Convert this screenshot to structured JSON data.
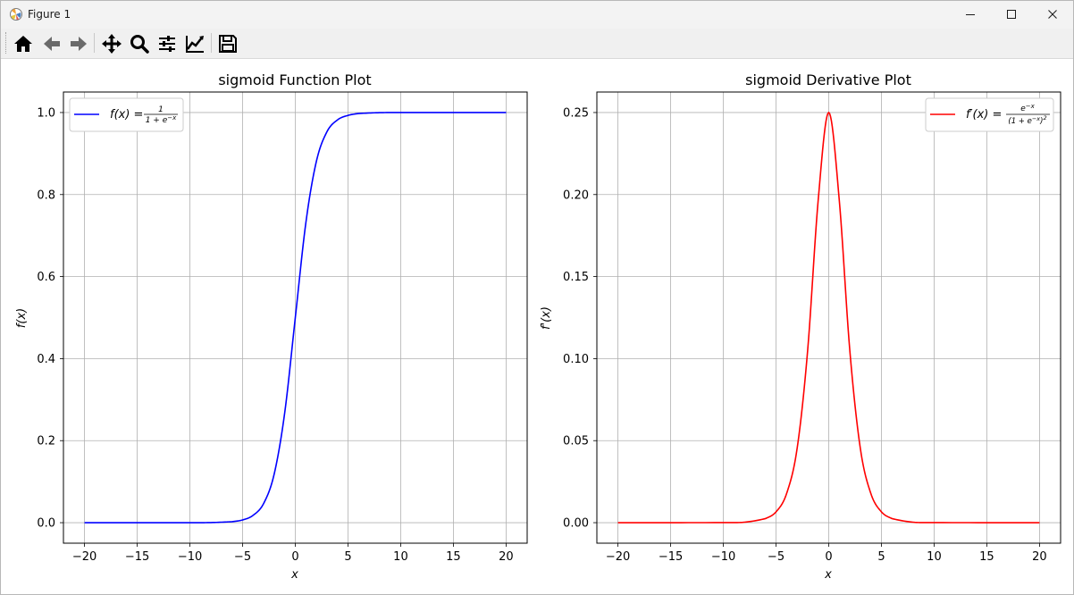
{
  "window": {
    "title": "Figure 1",
    "controls": [
      "minimize",
      "maximize",
      "close"
    ]
  },
  "toolbar": {
    "buttons": [
      {
        "name": "home",
        "icon": "home-icon"
      },
      {
        "name": "back",
        "icon": "arrow-left-icon"
      },
      {
        "name": "forward",
        "icon": "arrow-right-icon"
      },
      {
        "name": "pan",
        "icon": "move-icon"
      },
      {
        "name": "zoom",
        "icon": "zoom-icon"
      },
      {
        "name": "subplots",
        "icon": "sliders-icon"
      },
      {
        "name": "customize",
        "icon": "line-chart-icon"
      },
      {
        "name": "save",
        "icon": "floppy-disk-icon"
      }
    ]
  },
  "chart_data": [
    {
      "type": "line",
      "title": "sigmoid Function Plot",
      "xlabel": "x",
      "ylabel": "f(x)",
      "xlim": [
        -22,
        22
      ],
      "ylim": [
        -0.05,
        1.05
      ],
      "xticks": [
        -20,
        -15,
        -10,
        -5,
        0,
        5,
        10,
        15,
        20
      ],
      "yticks": [
        0.0,
        0.2,
        0.4,
        0.6,
        0.8,
        1.0
      ],
      "ytick_labels": [
        "0.0",
        "0.2",
        "0.4",
        "0.6",
        "0.8",
        "1.0"
      ],
      "grid": true,
      "legend": {
        "placement": "upper-left",
        "label": "f(x) = 1 / (1 + e^{-x})"
      },
      "series": [
        {
          "name": "f(x) = 1 / (1 + e^{-x})",
          "color": "#0000ff",
          "x": [
            -20,
            -10,
            -8,
            -6,
            -5,
            -4,
            -3,
            -2,
            -1,
            0,
            1,
            2,
            3,
            4,
            5,
            6,
            8,
            10,
            20
          ],
          "y": [
            0.0,
            0.0,
            0.0003,
            0.0025,
            0.0067,
            0.018,
            0.047,
            0.119,
            0.269,
            0.5,
            0.731,
            0.881,
            0.953,
            0.982,
            0.993,
            0.9975,
            0.9997,
            1.0,
            1.0
          ]
        }
      ]
    },
    {
      "type": "line",
      "title": "sigmoid Derivative Plot",
      "xlabel": "x",
      "ylabel": "f'(x)",
      "xlim": [
        -22,
        22
      ],
      "ylim": [
        -0.0125,
        0.2625
      ],
      "xticks": [
        -20,
        -15,
        -10,
        -5,
        0,
        5,
        10,
        15,
        20
      ],
      "yticks": [
        0.0,
        0.05,
        0.1,
        0.15,
        0.2,
        0.25
      ],
      "ytick_labels": [
        "0.00",
        "0.05",
        "0.10",
        "0.15",
        "0.20",
        "0.25"
      ],
      "grid": true,
      "legend": {
        "placement": "upper-right",
        "label": "f'(x) = e^{-x} / (1 + e^{-x})^2"
      },
      "series": [
        {
          "name": "f'(x) = e^{-x} / (1 + e^{-x})^2",
          "color": "#ff0000",
          "x": [
            -20,
            -10,
            -8,
            -6,
            -5,
            -4,
            -3,
            -2,
            -1,
            0,
            1,
            2,
            3,
            4,
            5,
            6,
            8,
            10,
            20
          ],
          "y": [
            0.0,
            5e-05,
            0.0003,
            0.0025,
            0.0066,
            0.0177,
            0.0452,
            0.105,
            0.1966,
            0.25,
            0.1966,
            0.105,
            0.0452,
            0.0177,
            0.0066,
            0.0025,
            0.0003,
            5e-05,
            0.0
          ]
        }
      ]
    }
  ]
}
